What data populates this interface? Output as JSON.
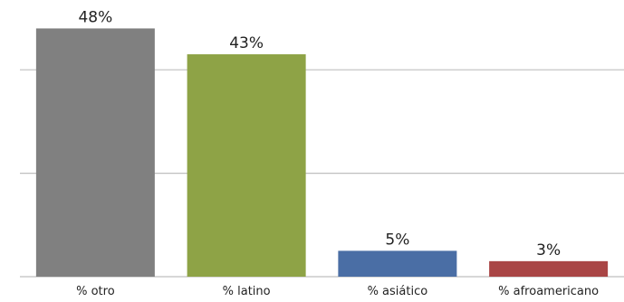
{
  "chart_data": {
    "type": "bar",
    "categories": [
      "% otro",
      "% latino",
      "% asiático",
      "% afroamericano"
    ],
    "values": [
      48,
      43,
      5,
      3
    ],
    "data_labels": [
      "48%",
      "43%",
      "5%",
      "3%"
    ],
    "colors": [
      "#808080",
      "#8ea346",
      "#4a6ea5",
      "#a94545"
    ],
    "title": "",
    "xlabel": "",
    "ylabel": "",
    "ylim": [
      0,
      50
    ],
    "gridlines_at": [
      20,
      40
    ],
    "grid": true,
    "legend": "none"
  }
}
